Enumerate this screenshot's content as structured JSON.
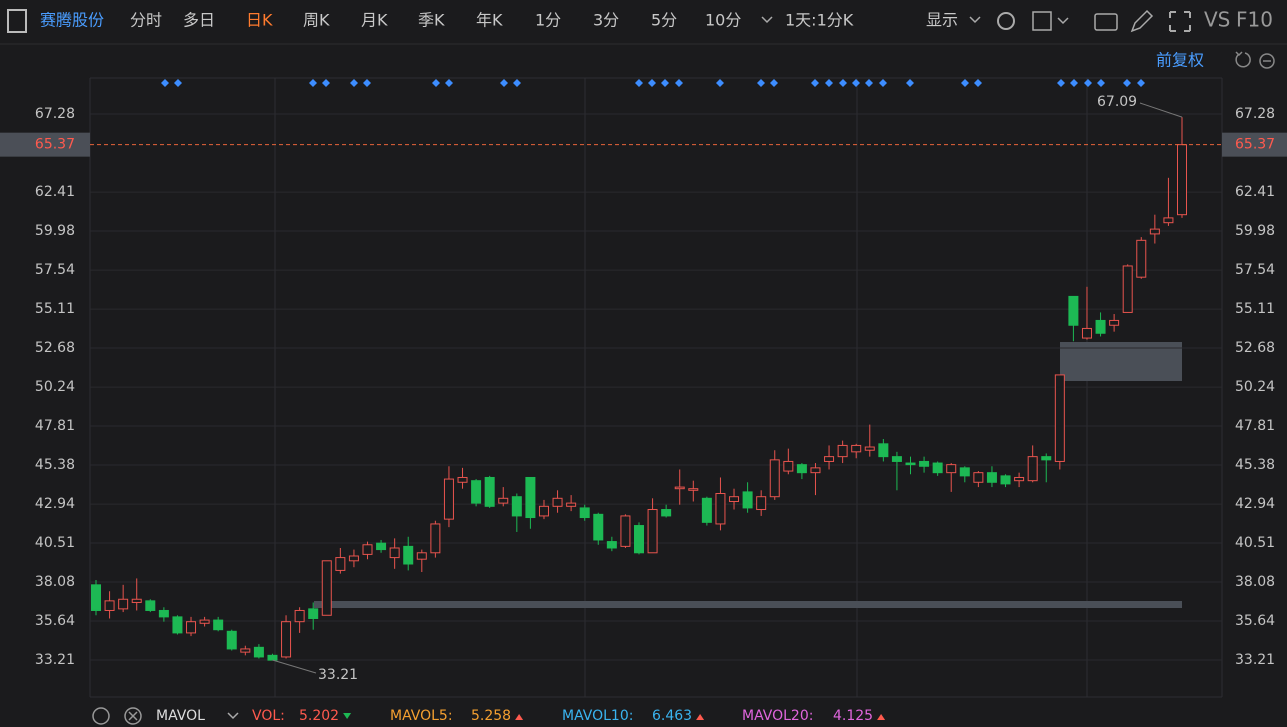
{
  "toolbar": {
    "stock": "赛腾股份",
    "tabs": [
      "分时",
      "多日",
      "日K",
      "周K",
      "月K",
      "季K",
      "年K",
      "1分",
      "3分",
      "5分",
      "10分"
    ],
    "period": "1天:1分K",
    "display": "显示",
    "vs": "VS",
    "f10": "F10",
    "adjust": "前复权"
  },
  "indicators": {
    "name": "MAVOL",
    "items": [
      {
        "label": "VOL:",
        "value": "5.202"
      },
      {
        "label": "MAVOL5:",
        "value": "5.258"
      },
      {
        "label": "MAVOL10:",
        "value": "6.463"
      },
      {
        "label": "MAVOL20:",
        "value": "4.125"
      }
    ]
  },
  "chart_data": {
    "type": "candlestick",
    "up_color": "#e8544e",
    "down_color": "#1db954",
    "ylim": [
      30.9,
      69.53
    ],
    "yticks": [
      67.28,
      62.41,
      59.98,
      57.54,
      55.11,
      52.68,
      50.24,
      47.81,
      45.38,
      42.94,
      40.51,
      38.08,
      35.64,
      33.21
    ],
    "current_price": 65.37,
    "high_label": 67.09,
    "low_label": 33.21,
    "open": [
      37.9,
      36.3,
      36.4,
      36.8,
      36.9,
      36.3,
      35.9,
      34.9,
      35.5,
      35.7,
      35.0,
      33.7,
      34.0,
      33.5,
      33.4,
      35.6,
      36.4,
      36.0,
      38.8,
      39.4,
      39.8,
      40.5,
      39.6,
      40.3,
      39.5,
      39.9,
      42.0,
      44.3,
      44.4,
      44.6,
      43.0,
      43.4,
      44.6,
      42.2,
      42.8,
      42.8,
      42.7,
      42.3,
      40.6,
      40.3,
      41.6,
      39.9,
      42.6,
      43.9,
      43.8,
      43.3,
      41.7,
      43.1,
      43.7,
      42.6,
      43.4,
      45.0,
      45.4,
      44.9,
      45.6,
      45.9,
      46.2,
      46.3,
      46.7,
      45.9,
      45.5,
      45.6,
      45.5,
      44.9,
      45.2,
      44.3,
      44.9,
      44.7,
      44.4,
      44.4,
      45.9,
      45.6,
      55.9,
      53.3,
      54.4,
      54.1,
      54.9,
      57.1,
      59.8,
      60.5,
      61.0
    ],
    "high": [
      38.2,
      37.5,
      37.9,
      38.3,
      37.0,
      36.5,
      36.0,
      35.9,
      35.9,
      35.9,
      35.1,
      34.1,
      34.2,
      33.6,
      36.0,
      36.5,
      36.8,
      39.4,
      40.2,
      40.1,
      40.6,
      40.7,
      40.8,
      40.9,
      40.1,
      41.9,
      45.3,
      45.2,
      44.5,
      44.7,
      44.0,
      43.6,
      44.6,
      43.2,
      43.8,
      43.5,
      42.9,
      42.4,
      40.9,
      42.3,
      41.8,
      43.3,
      42.9,
      45.1,
      44.4,
      43.4,
      44.6,
      43.9,
      44.3,
      43.8,
      46.3,
      46.4,
      45.5,
      45.5,
      46.6,
      46.9,
      46.7,
      47.9,
      47.0,
      46.2,
      45.9,
      45.9,
      45.6,
      45.5,
      45.3,
      45.0,
      45.3,
      44.8,
      44.9,
      46.6,
      46.1,
      51.0,
      55.9,
      56.5,
      54.9,
      54.8,
      57.9,
      59.6,
      61.0,
      63.3,
      67.09
    ],
    "low": [
      36.0,
      35.8,
      36.2,
      36.3,
      36.2,
      35.6,
      34.8,
      34.7,
      35.3,
      35.0,
      33.8,
      33.5,
      33.3,
      33.21,
      33.3,
      34.9,
      35.1,
      36.0,
      38.6,
      39.0,
      39.5,
      39.9,
      38.9,
      38.8,
      38.7,
      39.6,
      41.5,
      43.9,
      42.8,
      42.7,
      42.8,
      41.2,
      41.4,
      42.0,
      42.4,
      42.5,
      41.9,
      40.4,
      40.0,
      40.2,
      39.8,
      39.9,
      42.1,
      42.9,
      43.1,
      41.6,
      41.3,
      42.6,
      42.4,
      42.2,
      43.2,
      44.8,
      44.5,
      43.5,
      45.1,
      45.5,
      45.8,
      45.9,
      45.6,
      43.8,
      44.8,
      44.9,
      44.7,
      43.7,
      44.3,
      44.0,
      44.0,
      44.0,
      44.0,
      44.3,
      44.3,
      45.1,
      53.1,
      53.2,
      53.4,
      53.7,
      54.9,
      57.0,
      59.2,
      60.3,
      60.8
    ],
    "close": [
      36.3,
      36.9,
      37.0,
      37.0,
      36.3,
      35.9,
      34.9,
      35.6,
      35.7,
      35.1,
      33.9,
      33.9,
      33.4,
      33.2,
      35.6,
      36.3,
      35.8,
      39.4,
      39.6,
      39.7,
      40.4,
      40.1,
      40.2,
      39.2,
      39.9,
      41.7,
      44.5,
      44.6,
      43.0,
      42.8,
      43.3,
      42.2,
      42.1,
      42.8,
      43.3,
      43.0,
      42.1,
      40.7,
      40.2,
      42.2,
      39.9,
      42.6,
      42.2,
      44.0,
      43.9,
      41.8,
      43.6,
      43.4,
      42.7,
      43.4,
      45.7,
      45.6,
      44.9,
      45.2,
      45.9,
      46.6,
      46.6,
      46.5,
      45.9,
      45.6,
      45.4,
      45.3,
      44.9,
      45.4,
      44.7,
      44.9,
      44.3,
      44.2,
      44.6,
      45.9,
      45.7,
      51.0,
      54.1,
      53.9,
      53.6,
      54.4,
      57.8,
      59.4,
      60.1,
      60.8,
      65.37
    ]
  }
}
